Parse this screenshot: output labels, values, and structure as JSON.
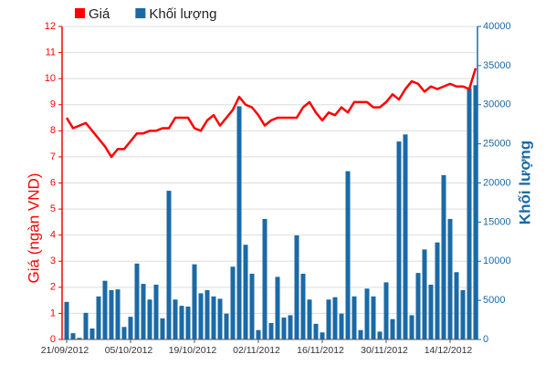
{
  "chart_data": {
    "type": "combo",
    "categories": [
      "21/09/2012",
      null,
      null,
      null,
      null,
      null,
      null,
      null,
      null,
      null,
      "05/10/2012",
      null,
      null,
      null,
      null,
      null,
      null,
      null,
      null,
      null,
      "19/10/2012",
      null,
      null,
      null,
      null,
      null,
      null,
      null,
      null,
      null,
      "02/11/2012",
      null,
      null,
      null,
      null,
      null,
      null,
      null,
      null,
      null,
      "16/11/2012",
      null,
      null,
      null,
      null,
      null,
      null,
      null,
      null,
      null,
      "30/11/2012",
      null,
      null,
      null,
      null,
      null,
      null,
      null,
      null,
      null,
      "14/12/2012",
      null,
      null,
      null,
      null
    ],
    "series": [
      {
        "name": "Giá",
        "color": "#ff0000",
        "type": "line",
        "values": [
          8.5,
          8.1,
          8.2,
          8.3,
          8.0,
          7.7,
          7.4,
          7.0,
          7.3,
          7.3,
          7.6,
          7.9,
          7.9,
          8.0,
          8.0,
          8.1,
          8.1,
          8.5,
          8.5,
          8.5,
          8.1,
          8.0,
          8.4,
          8.6,
          8.2,
          8.5,
          8.8,
          9.3,
          9.0,
          8.9,
          8.6,
          8.2,
          8.4,
          8.5,
          8.5,
          8.5,
          8.5,
          8.9,
          9.1,
          8.7,
          8.4,
          8.7,
          8.6,
          8.9,
          8.7,
          9.1,
          9.1,
          9.1,
          8.9,
          8.9,
          9.1,
          9.4,
          9.2,
          9.6,
          9.9,
          9.8,
          9.5,
          9.7,
          9.6,
          9.7,
          9.8,
          9.7,
          9.7,
          9.6,
          10.4
        ]
      },
      {
        "name": "Khối lượng",
        "color": "#1a6aa6",
        "type": "bar",
        "axis": "y2",
        "values": [
          4800,
          800,
          200,
          3400,
          1400,
          5500,
          7500,
          6300,
          6400,
          1600,
          2900,
          9700,
          7100,
          5100,
          7000,
          2700,
          19000,
          5100,
          4300,
          4200,
          9600,
          5900,
          6300,
          5500,
          5200,
          3300,
          9300,
          29800,
          12100,
          8400,
          1200,
          15400,
          2100,
          8000,
          2800,
          3100,
          13300,
          8400,
          5100,
          2000,
          900,
          5100,
          5400,
          3300,
          21500,
          5500,
          1200,
          6500,
          5500,
          1000,
          7300,
          2600,
          25300,
          26200,
          3100,
          8500,
          11500,
          7000,
          12400,
          21000,
          15400,
          8600,
          6300,
          32100,
          32500
        ]
      }
    ],
    "ylabel": "Giá (ngàn VND)",
    "y2label": "Khối lượng",
    "ylim": [
      0,
      12
    ],
    "yticks": [
      0,
      1,
      2,
      3,
      4,
      5,
      6,
      7,
      8,
      9,
      10,
      11,
      12
    ],
    "y2lim": [
      0,
      40000
    ],
    "y2ticks": [
      0,
      5000,
      10000,
      15000,
      20000,
      25000,
      30000,
      35000,
      40000
    ],
    "grid": true,
    "legend": "top-left"
  }
}
